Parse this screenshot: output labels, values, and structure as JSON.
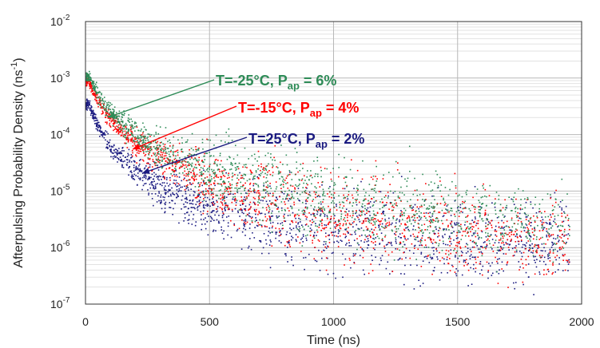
{
  "chart_data": {
    "type": "scatter",
    "title": "",
    "xlabel": "Time (ns)",
    "ylabel": "Afterpulsing Probability Density (ns",
    "ylabel_sup": "-1",
    "ylabel_close": ")",
    "xlim": [
      0,
      2000
    ],
    "ylim": [
      1e-07,
      0.01
    ],
    "yscale": "log",
    "grid": true,
    "x_ticks": [
      "0",
      "500",
      "1000",
      "1500",
      "2000"
    ],
    "y_ticks": [
      {
        "base": "10",
        "exp": "-7"
      },
      {
        "base": "10",
        "exp": "-6"
      },
      {
        "base": "10",
        "exp": "-5"
      },
      {
        "base": "10",
        "exp": "-4"
      },
      {
        "base": "10",
        "exp": "-3"
      },
      {
        "base": "10",
        "exp": "-2"
      }
    ],
    "series": [
      {
        "color": "#1a1a80",
        "x": [
          10,
          50,
          100,
          200,
          300,
          500,
          750,
          1000,
          1500,
          1950
        ],
        "y": [
          0.00035,
          0.00014,
          6e-05,
          2.2e-05,
          1.2e-05,
          5e-06,
          3e-06,
          2e-06,
          1.5e-06,
          1.3e-06
        ]
      },
      {
        "color": "#ff0000",
        "x": [
          10,
          50,
          100,
          200,
          300,
          500,
          750,
          1000,
          1500,
          1950
        ],
        "y": [
          0.0009,
          0.00038,
          0.00018,
          7e-05,
          4e-05,
          1.5e-05,
          6.5e-06,
          3.8e-06,
          2e-06,
          1.4e-06
        ]
      },
      {
        "color": "#2e8b57",
        "x": [
          10,
          50,
          100,
          200,
          300,
          500,
          750,
          1000,
          1500,
          1950
        ],
        "y": [
          0.0011,
          0.0005,
          0.00025,
          0.0001,
          5.5e-05,
          2.5e-05,
          1.3e-05,
          7e-06,
          3.5e-06,
          2.3e-06
        ]
      }
    ],
    "annotations": [
      {
        "color": "#2e8b57",
        "t": "T=-25°C, P",
        "sub": "ap",
        "tail": " = 6%"
      },
      {
        "color": "#ff0000",
        "t": "T=-15°C, P",
        "sub": "ap",
        "tail": " = 4%"
      },
      {
        "color": "#1a1a80",
        "t": "T=25°C, P",
        "sub": "ap",
        "tail": " = 2%"
      }
    ]
  }
}
